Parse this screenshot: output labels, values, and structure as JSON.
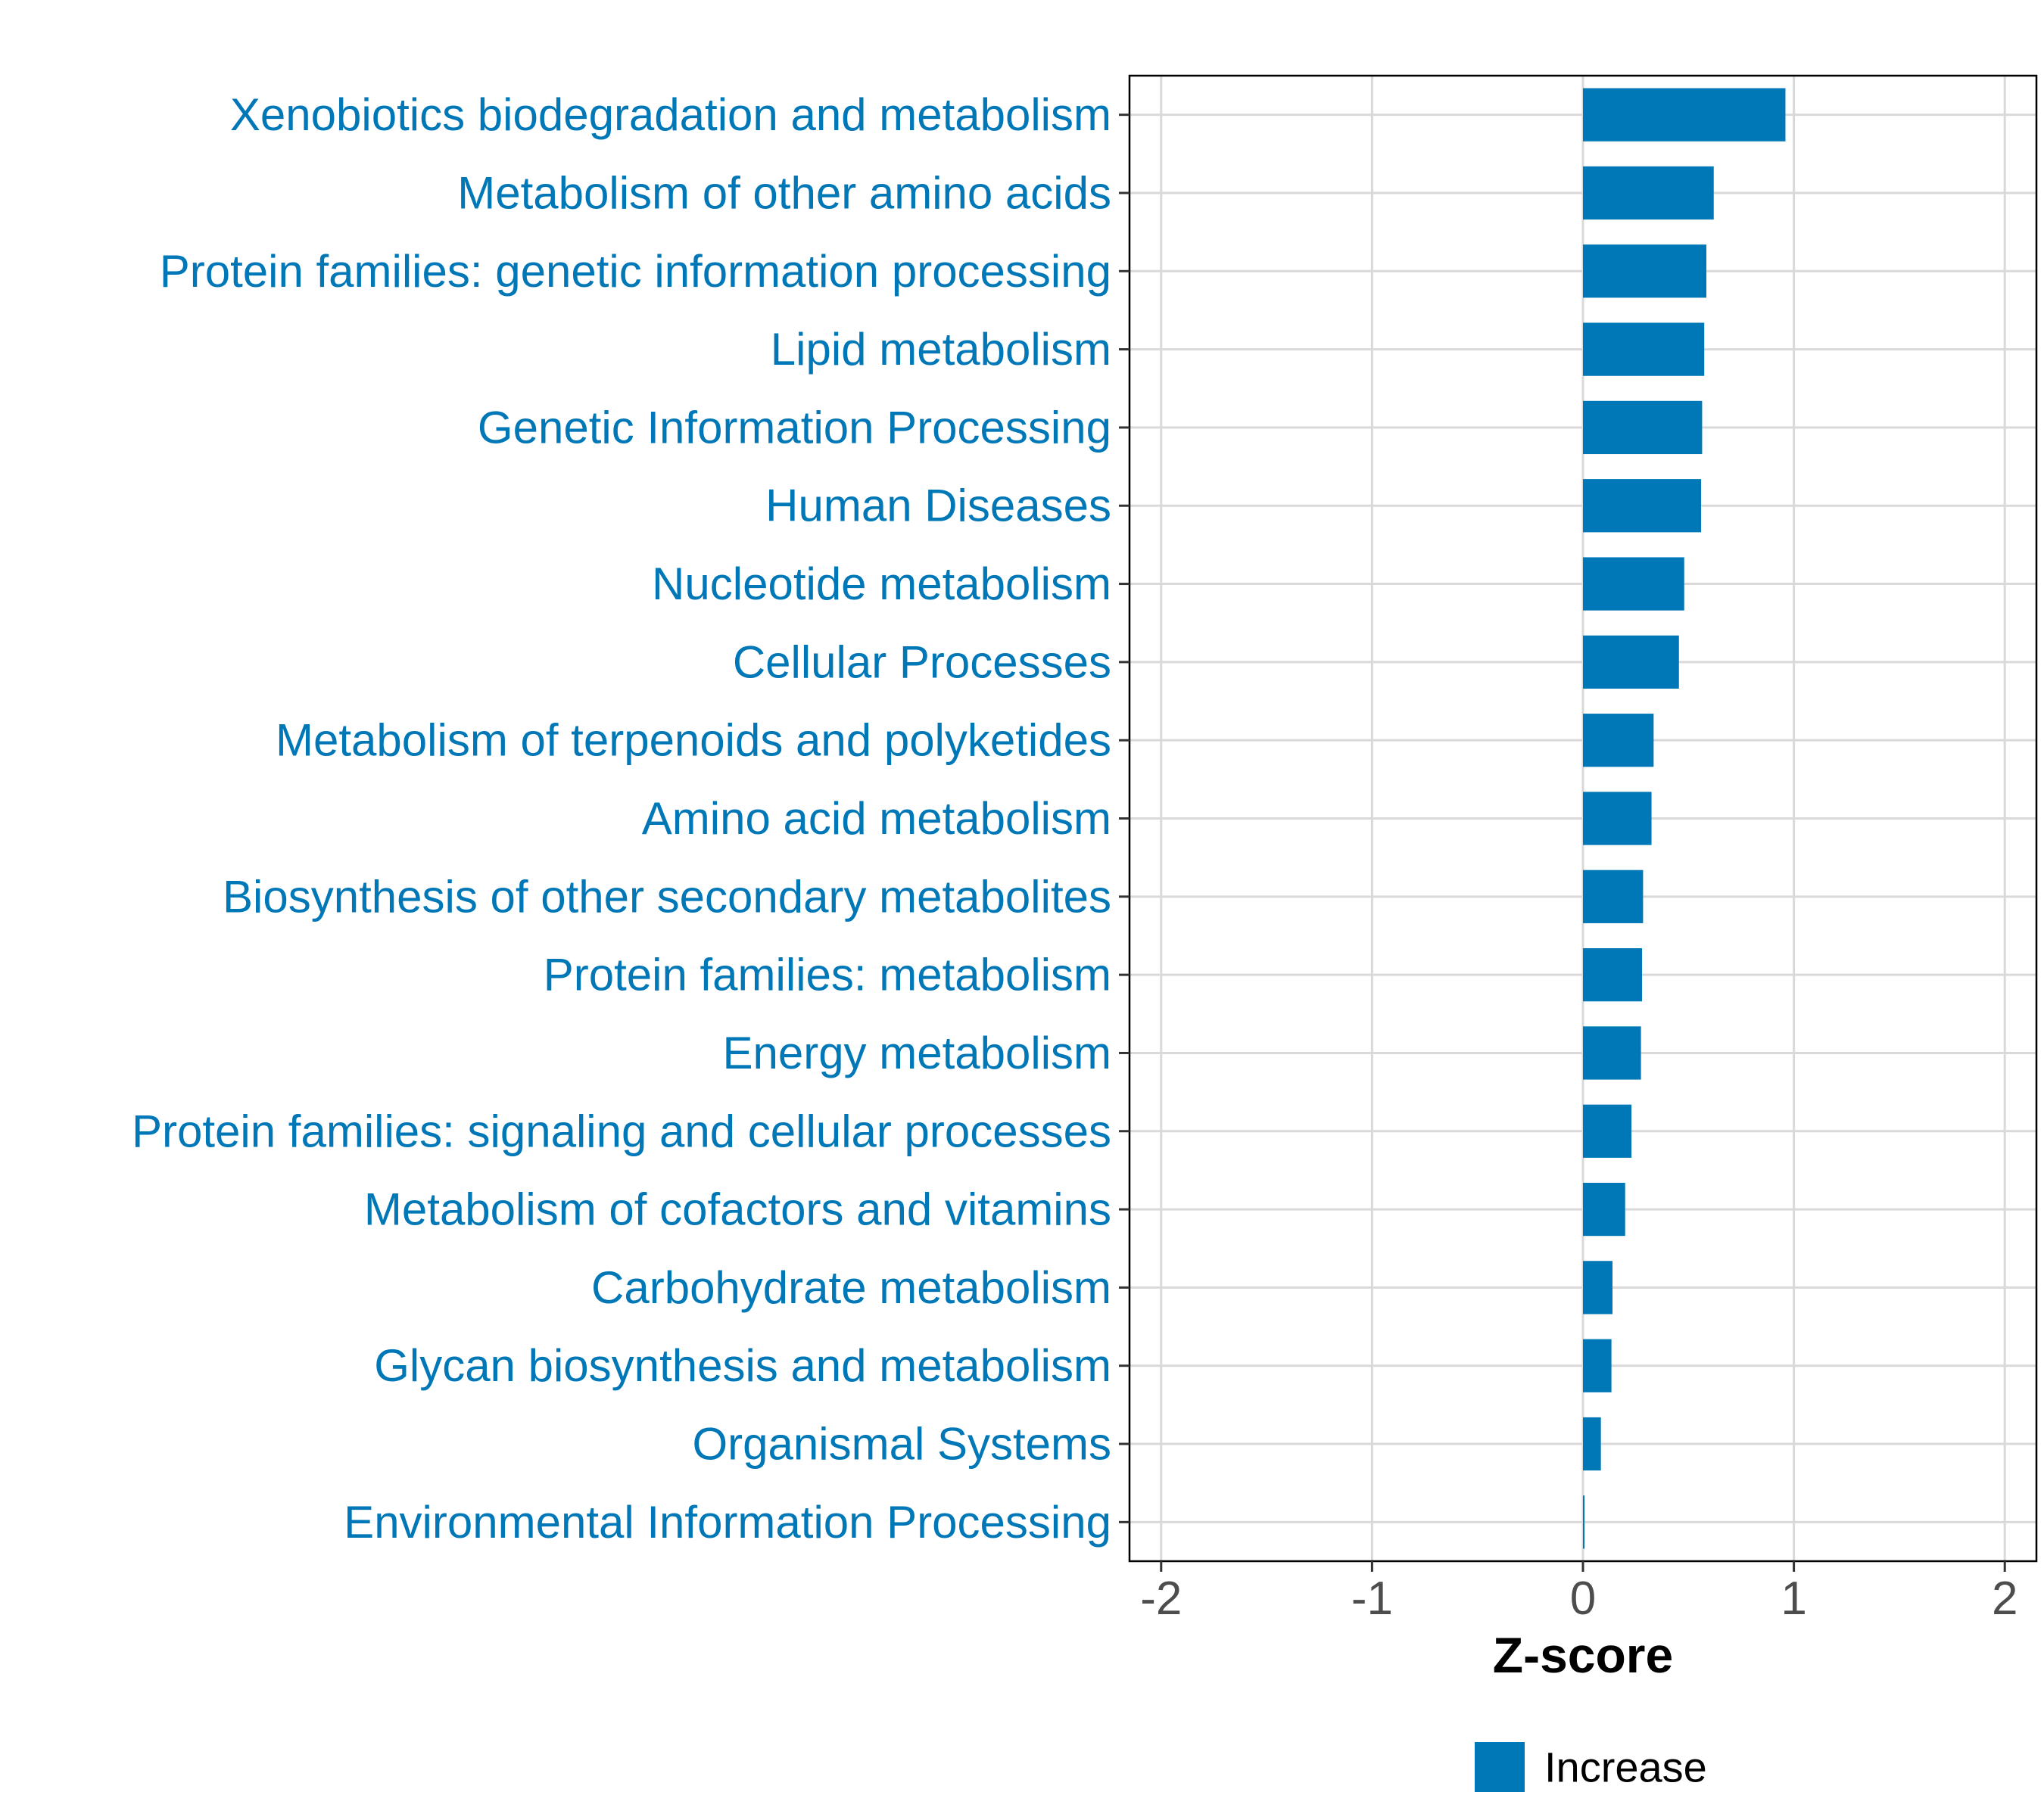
{
  "chart_data": {
    "type": "bar",
    "orientation": "horizontal",
    "categories": [
      "Xenobiotics biodegradation and metabolism",
      "Metabolism of other amino acids",
      "Protein families: genetic information processing",
      "Lipid metabolism",
      "Genetic Information Processing",
      "Human Diseases",
      "Nucleotide metabolism",
      "Cellular Processes",
      "Metabolism of terpenoids and polyketides",
      "Amino acid metabolism",
      "Biosynthesis of other secondary metabolites",
      "Protein families: metabolism",
      "Energy metabolism",
      "Protein families: signaling and cellular processes",
      "Metabolism of cofactors and vitamins",
      "Carbohydrate metabolism",
      "Glycan biosynthesis and metabolism",
      "Organismal Systems",
      "Environmental Information Processing"
    ],
    "values": [
      0.96,
      0.62,
      0.585,
      0.575,
      0.565,
      0.56,
      0.48,
      0.455,
      0.335,
      0.325,
      0.285,
      0.28,
      0.275,
      0.23,
      0.2,
      0.14,
      0.135,
      0.085,
      0.005
    ],
    "series_name": "Increase",
    "xlabel": "Z-score",
    "ylabel": "",
    "xlim": [
      -2.15,
      2.15
    ],
    "xticks": [
      -2,
      -1,
      0,
      1,
      2
    ],
    "xtick_labels": [
      "-2",
      "-1",
      "0",
      "1",
      "2"
    ],
    "grid": true,
    "legend": {
      "position": "bottom",
      "entries": [
        "Increase"
      ]
    },
    "colors": {
      "bar": "#0077B6",
      "category_label": "#0077B6",
      "tick_label": "#4D4D4D",
      "axis_title": "#000000",
      "grid": "#D9D9D9",
      "frame": "#000000"
    }
  }
}
